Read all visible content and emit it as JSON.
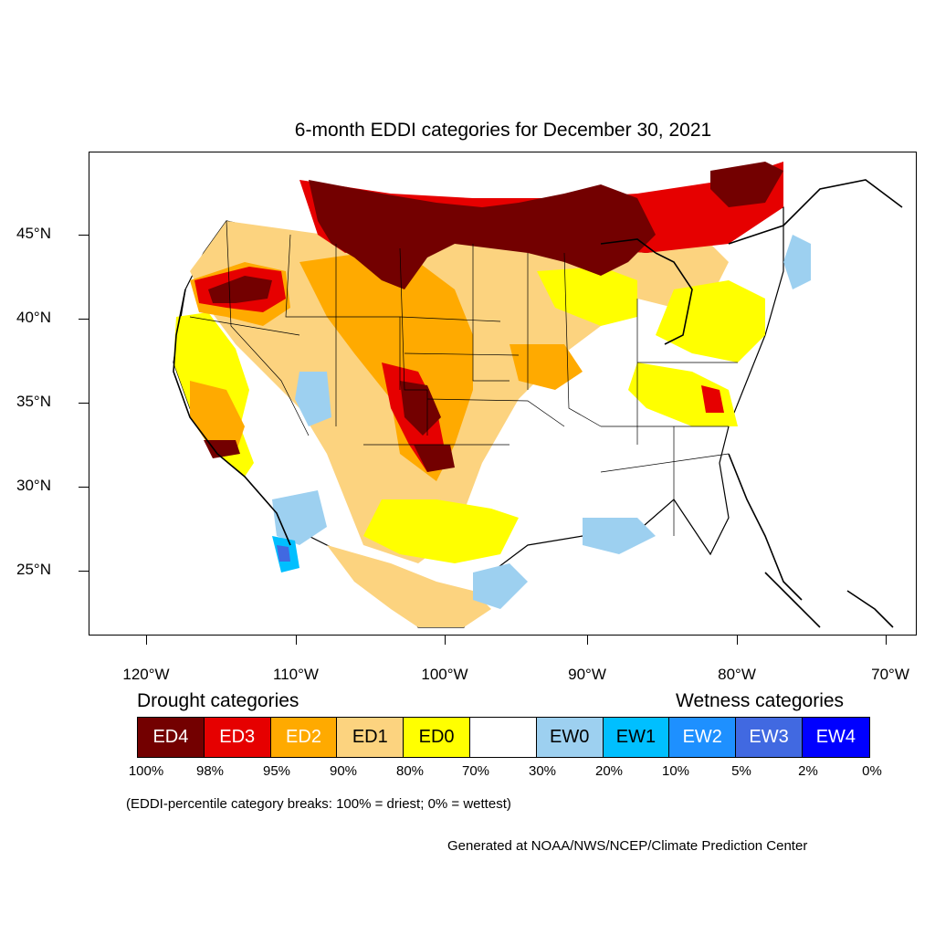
{
  "title": "6-month EDDI categories for December 30, 2021",
  "lat_labels": [
    "45°N",
    "40°N",
    "35°N",
    "30°N",
    "25°N"
  ],
  "lon_labels": [
    "120°W",
    "110°W",
    "100°W",
    "90°W",
    "80°W",
    "70°W"
  ],
  "drought_heading": "Drought categories",
  "wetness_heading": "Wetness categories",
  "categories": [
    {
      "label": "ED4",
      "color": "#730000"
    },
    {
      "label": "ED3",
      "color": "#e60000"
    },
    {
      "label": "ED2",
      "color": "#ffaa00"
    },
    {
      "label": "ED1",
      "color": "#fcd37f"
    },
    {
      "label": "ED0",
      "color": "#ffff00"
    },
    {
      "label": "",
      "color": "#ffffff"
    },
    {
      "label": "EW0",
      "color": "#9dd0f0"
    },
    {
      "label": "EW1",
      "color": "#00bfff"
    },
    {
      "label": "EW2",
      "color": "#1e90ff"
    },
    {
      "label": "EW3",
      "color": "#4169e1"
    },
    {
      "label": "EW4",
      "color": "#0000ff"
    }
  ],
  "percentiles": [
    "100%",
    "98%",
    "95%",
    "90%",
    "80%",
    "70%",
    "30%",
    "20%",
    "10%",
    "5%",
    "2%",
    "0%"
  ],
  "note": "(EDDI-percentile category breaks: 100% = driest; 0% = wettest)",
  "credit": "Generated at NOAA/NWS/NCEP/Climate Prediction Center"
}
